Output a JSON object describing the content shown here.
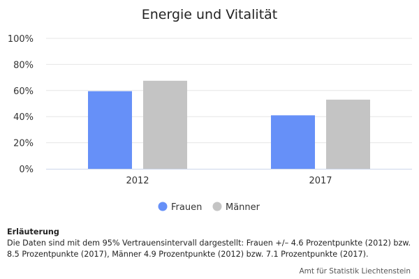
{
  "chart_data": {
    "type": "bar",
    "title": "Energie und Vitalität",
    "categories": [
      "2012",
      "2017"
    ],
    "series": [
      {
        "name": "Frauen",
        "color": "#6690f8",
        "values": [
          59.5,
          41
        ]
      },
      {
        "name": "Männer",
        "color": "#c4c4c4",
        "values": [
          67.5,
          53
        ]
      }
    ],
    "ylim": [
      0,
      100
    ],
    "yticks": [
      "0%",
      "20%",
      "40%",
      "60%",
      "80%",
      "100%"
    ],
    "ytick_values": [
      0,
      20,
      40,
      60,
      80,
      100
    ],
    "grid": true,
    "legend_position": "bottom-center"
  },
  "note": {
    "title": "Erläuterung",
    "text": "Die Daten sind mit dem 95% Vertrauensintervall dargestellt: Frauen +/– 4.6 Prozentpunkte (2012) bzw. 8.5 Prozentpunkte (2017), Männer 4.9 Prozentpunkte (2012) bzw. 7.1 Prozentpunkte (2017)."
  },
  "credit": "Amt für Statistik Liechtenstein"
}
